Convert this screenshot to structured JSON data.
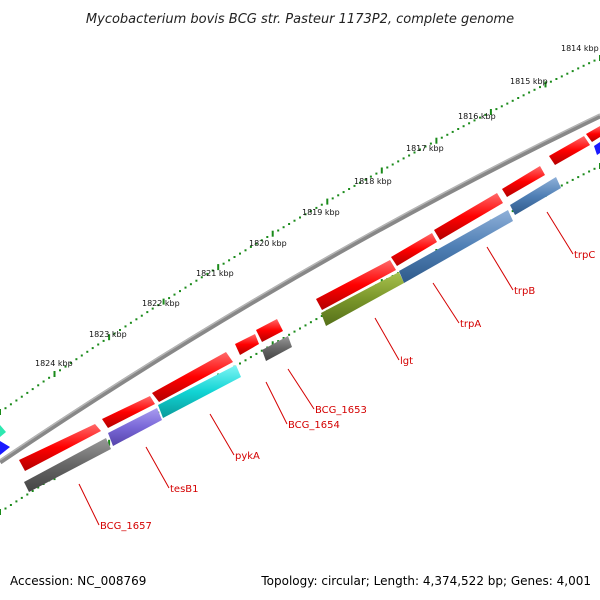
{
  "title": "Mycobacterium bovis BCG str. Pasteur 1173P2, complete genome",
  "accession": "Accession: NC_008769",
  "summary": "Topology: circular; Length: 4,374,522 bp; Genes: 4,001",
  "ruler": {
    "ticks": [
      "1814 kbp",
      "1815 kbp",
      "1816 kbp",
      "1817 kbp",
      "1818 kbp",
      "1819 kbp",
      "1820 kbp",
      "1821 kbp",
      "1822 kbp",
      "1823 kbp",
      "1824 kbp"
    ]
  },
  "genes": [
    {
      "label": "trpC"
    },
    {
      "label": "trpB"
    },
    {
      "label": "trpA"
    },
    {
      "label": "lgt"
    },
    {
      "label": "BCG_1653"
    },
    {
      "label": "BCG_1654"
    },
    {
      "label": "pykA"
    },
    {
      "label": "tesB1"
    },
    {
      "label": "BCG_1657"
    }
  ],
  "colors": {
    "cds": "#e60000",
    "backbone": "#777777",
    "tick": "#1a8a1a",
    "label": "#d40000"
  }
}
